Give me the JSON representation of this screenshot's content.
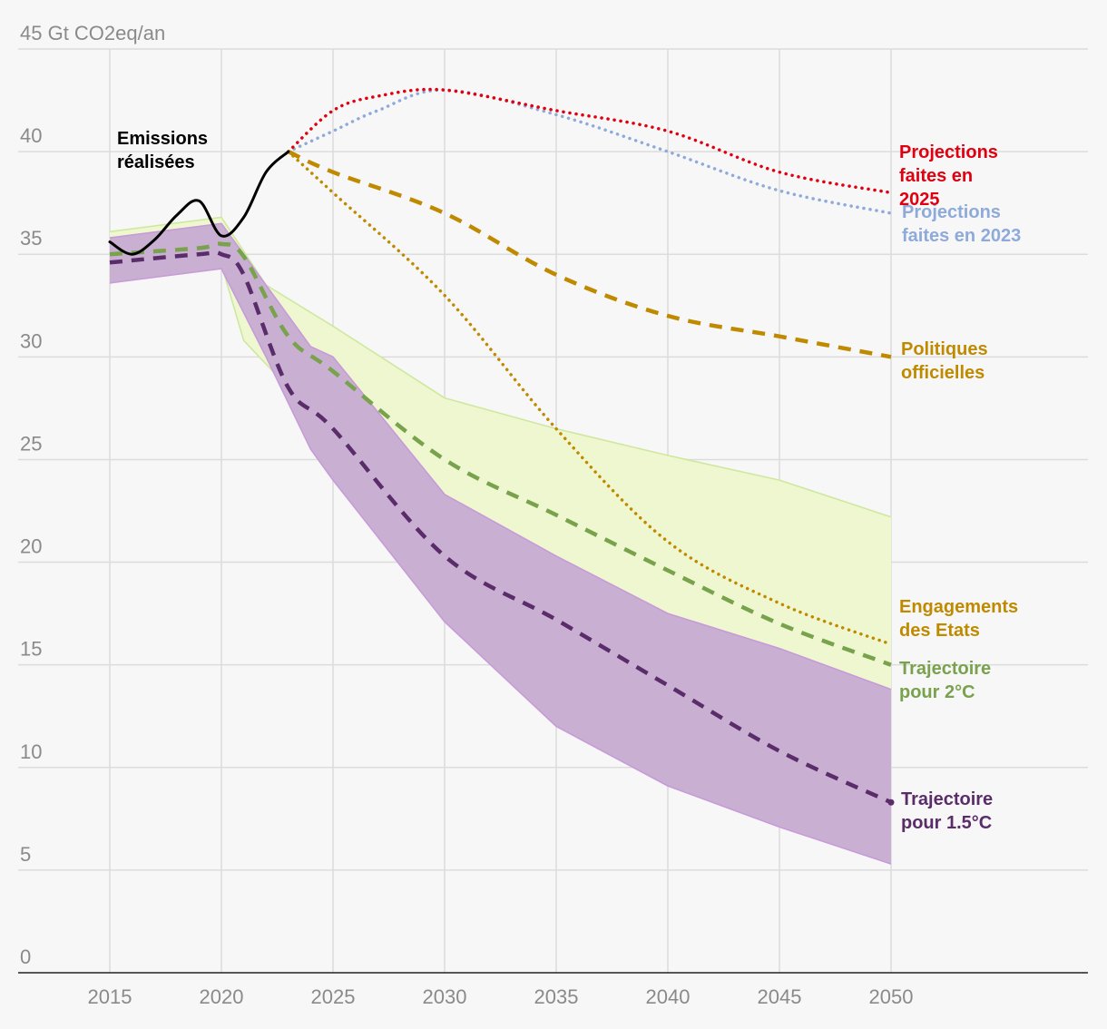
{
  "chart_data": {
    "type": "line",
    "y_unit_label": "45 Gt CO2eq/an",
    "y_ticks": [
      0,
      5,
      10,
      15,
      20,
      25,
      30,
      35,
      40
    ],
    "x_ticks": [
      2015,
      2020,
      2025,
      2030,
      2035,
      2040,
      2045,
      2050
    ],
    "xlim": [
      2011,
      2059
    ],
    "ylim": [
      0,
      45
    ],
    "bands": [
      {
        "name": "2°C range",
        "fill": "#eef7cf",
        "stroke": "#cfe8a0",
        "upper": [
          [
            2015,
            36.1
          ],
          [
            2020,
            36.8
          ],
          [
            2022,
            33.5
          ],
          [
            2025,
            31.5
          ],
          [
            2030,
            28
          ],
          [
            2035,
            26.5
          ],
          [
            2040,
            25.2
          ],
          [
            2045,
            24
          ],
          [
            2050,
            22.2
          ]
        ],
        "lower": [
          [
            2015,
            34.4
          ],
          [
            2020,
            34.5
          ],
          [
            2021,
            30.8
          ],
          [
            2023,
            28.5
          ],
          [
            2025,
            27.5
          ],
          [
            2030,
            23
          ],
          [
            2035,
            19
          ],
          [
            2040,
            16.5
          ],
          [
            2045,
            14.2
          ],
          [
            2050,
            12
          ]
        ]
      },
      {
        "name": "1.5°C range",
        "fill": "#c9b0d3",
        "stroke": "#c79ad8",
        "upper": [
          [
            2015,
            35.8
          ],
          [
            2020,
            36.5
          ],
          [
            2022,
            33.5
          ],
          [
            2024,
            30.5
          ],
          [
            2025,
            30
          ],
          [
            2030,
            23.3
          ],
          [
            2035,
            20.3
          ],
          [
            2040,
            17.5
          ],
          [
            2045,
            15.8
          ],
          [
            2050,
            13.8
          ]
        ],
        "lower": [
          [
            2015,
            33.6
          ],
          [
            2020,
            34.3
          ],
          [
            2022,
            30
          ],
          [
            2024,
            25.5
          ],
          [
            2025,
            24
          ],
          [
            2030,
            17.1
          ],
          [
            2035,
            12
          ],
          [
            2040,
            9.1
          ],
          [
            2045,
            7.1
          ],
          [
            2050,
            5.3
          ]
        ]
      }
    ],
    "series": [
      {
        "name": "Projections faites en 2023",
        "label": [
          "Projections",
          "faites en 2023"
        ],
        "color": "#8eaadb",
        "style": "dotted",
        "points": [
          [
            2023,
            40
          ],
          [
            2025,
            41
          ],
          [
            2027,
            42
          ],
          [
            2030,
            43
          ],
          [
            2035,
            41.8
          ],
          [
            2040,
            40
          ],
          [
            2045,
            38.1
          ],
          [
            2050,
            37
          ]
        ]
      },
      {
        "name": "Projections faites en 2025",
        "label": [
          "Projections",
          "faites en",
          "2025"
        ],
        "color": "#e0000f",
        "style": "dotted",
        "points": [
          [
            2023,
            40
          ],
          [
            2025,
            42
          ],
          [
            2027,
            42.7
          ],
          [
            2030,
            43
          ],
          [
            2035,
            42
          ],
          [
            2040,
            41
          ],
          [
            2045,
            39
          ],
          [
            2050,
            38
          ]
        ]
      },
      {
        "name": "Politiques officielles",
        "label": [
          "Politiques",
          "officielles"
        ],
        "color": "#c08a00",
        "style": "dashed",
        "points": [
          [
            2023,
            40
          ],
          [
            2025,
            39
          ],
          [
            2030,
            37
          ],
          [
            2035,
            34
          ],
          [
            2040,
            32
          ],
          [
            2045,
            31
          ],
          [
            2050,
            30
          ]
        ]
      },
      {
        "name": "Engagements des Etats",
        "label": [
          "Engagements",
          "des Etats"
        ],
        "color": "#c08a00",
        "style": "dotted",
        "points": [
          [
            2023,
            40
          ],
          [
            2025,
            38
          ],
          [
            2030,
            33
          ],
          [
            2035,
            26.5
          ],
          [
            2040,
            21
          ],
          [
            2045,
            18
          ],
          [
            2050,
            16
          ]
        ]
      },
      {
        "name": "Trajectoire pour 2°C",
        "label": [
          "Trajectoire",
          "pour 2°C"
        ],
        "color": "#78a24c",
        "style": "dashed",
        "points": [
          [
            2015,
            35
          ],
          [
            2019,
            35.3
          ],
          [
            2020,
            35.5
          ],
          [
            2021,
            34.9
          ],
          [
            2023,
            31
          ],
          [
            2025,
            29.3
          ],
          [
            2030,
            25
          ],
          [
            2035,
            22.3
          ],
          [
            2040,
            19.6
          ],
          [
            2045,
            17
          ],
          [
            2050,
            15
          ]
        ]
      },
      {
        "name": "Trajectoire pour 1.5°C",
        "label": [
          "Trajectoire",
          "pour 1.5°C"
        ],
        "color": "#5a2d6a",
        "style": "dashed",
        "points": [
          [
            2015,
            34.6
          ],
          [
            2019,
            35
          ],
          [
            2020,
            35
          ],
          [
            2021,
            34
          ],
          [
            2023,
            28.5
          ],
          [
            2025,
            26.5
          ],
          [
            2030,
            20.3
          ],
          [
            2035,
            17.2
          ],
          [
            2040,
            14
          ],
          [
            2045,
            10.8
          ],
          [
            2050,
            8.3
          ]
        ]
      },
      {
        "name": "Emissions réalisées",
        "label": [
          "Emissions",
          "réalisées"
        ],
        "color": "#000000",
        "style": "solid",
        "points": [
          [
            2015,
            35.6
          ],
          [
            2016,
            35
          ],
          [
            2017,
            35.7
          ],
          [
            2018,
            36.9
          ],
          [
            2019,
            37.6
          ],
          [
            2020,
            35.9
          ],
          [
            2021,
            36.8
          ],
          [
            2022,
            39
          ],
          [
            2023,
            40
          ]
        ]
      }
    ]
  }
}
